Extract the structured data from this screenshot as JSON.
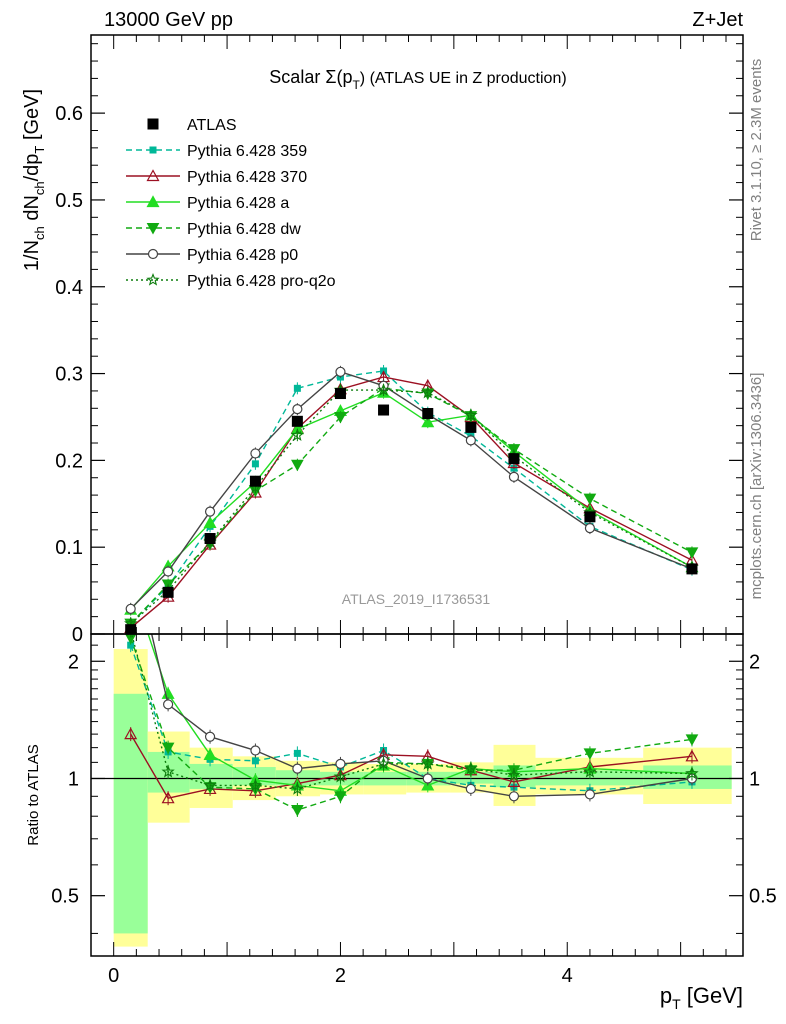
{
  "header": {
    "left": "13000 GeV pp",
    "right": "Z+Jet"
  },
  "side": {
    "rivet": "Rivet 3.1.10, ≥ 2.3M events",
    "site": "mcplots.cern.ch [arXiv:1306.3436]"
  },
  "analysis_id": "ATLAS_2019_I1736531",
  "chart_data": [
    {
      "type": "line",
      "title": "Scalar Σ(pT) (ATLAS UE in Z production)",
      "title_main": "Scalar Σ(p",
      "title_sub": "T",
      "title_tail": ") (ATLAS UE in Z production)",
      "ylabel": "1/Nch dNch/dpT [GeV]",
      "xlim": [
        -0.2,
        5.55
      ],
      "ylim": [
        0,
        0.69
      ],
      "yticks": [
        0,
        0.1,
        0.2,
        0.3,
        0.4,
        0.5,
        0.6
      ],
      "ytick_labels": [
        "0",
        "0.1",
        "0.2",
        "0.3",
        "0.4",
        "0.5",
        "0.6"
      ],
      "legend_position": "top-left",
      "x": [
        0.15,
        0.48,
        0.85,
        1.25,
        1.62,
        2.0,
        2.38,
        2.77,
        3.15,
        3.53,
        4.2,
        5.1
      ],
      "data_series": {
        "name": "ATLAS",
        "values": [
          0.005,
          0.048,
          0.11,
          0.176,
          0.245,
          0.277,
          0.258,
          0.254,
          0.238,
          0.202,
          0.135,
          0.075
        ],
        "color": "#000000"
      },
      "series": [
        {
          "name": "Pythia 6.428 359",
          "color": "#00b898",
          "dash": "6,4",
          "marker": "square",
          "values": [
            0.012,
            0.055,
            0.124,
            0.196,
            0.283,
            0.296,
            0.303,
            0.255,
            0.228,
            0.191,
            0.124,
            0.074
          ]
        },
        {
          "name": "Pythia 6.428 370",
          "color": "#9c1022",
          "dash": "",
          "marker": "triangle-open",
          "values": [
            0.007,
            0.043,
            0.103,
            0.163,
            0.237,
            0.282,
            0.296,
            0.286,
            0.25,
            0.197,
            0.145,
            0.085
          ]
        },
        {
          "name": "Pythia 6.428 a",
          "color": "#22dd22",
          "dash": "",
          "marker": "triangle",
          "values": [
            0.028,
            0.078,
            0.128,
            0.175,
            0.236,
            0.257,
            0.278,
            0.244,
            0.252,
            0.21,
            0.142,
            0.077
          ]
        },
        {
          "name": "Pythia 6.428 dw",
          "color": "#11aa11",
          "dash": "6,4",
          "marker": "triangle-down",
          "values": [
            0.012,
            0.057,
            0.104,
            0.165,
            0.195,
            0.25,
            0.283,
            0.277,
            0.251,
            0.213,
            0.156,
            0.094
          ]
        },
        {
          "name": "Pythia 6.428 p0",
          "color": "#444444",
          "dash": "",
          "marker": "circle-open",
          "values": [
            0.029,
            0.072,
            0.141,
            0.208,
            0.259,
            0.302,
            0.286,
            0.253,
            0.223,
            0.181,
            0.122,
            0.075
          ]
        },
        {
          "name": "Pythia 6.428 pro-q2o",
          "color": "#0d7d0d",
          "dash": "2,3",
          "marker": "star-open",
          "values": [
            0.012,
            0.05,
            0.106,
            0.169,
            0.229,
            0.281,
            0.281,
            0.278,
            0.252,
            0.205,
            0.14,
            0.077
          ]
        }
      ]
    },
    {
      "type": "line",
      "ylabel": "Ratio to ATLAS",
      "xlabel": "pT [GeV]",
      "xlim": [
        -0.2,
        5.55
      ],
      "ylim": [
        0.35,
        2.35
      ],
      "log_scale_y": true,
      "xticks": [
        0,
        2,
        4
      ],
      "xtick_labels": [
        "0",
        "2",
        "4"
      ],
      "yticks": [
        0.5,
        1,
        2
      ],
      "ytick_labels": [
        "0.5",
        "1",
        "2"
      ],
      "bands": {
        "bin_edges": [
          0.0,
          0.3,
          0.67,
          1.05,
          1.43,
          1.82,
          2.2,
          2.58,
          2.97,
          3.35,
          3.72,
          4.67,
          5.45
        ],
        "inner": [
          [
            0.4,
            1.65
          ],
          [
            0.92,
            1.17
          ],
          [
            0.94,
            1.09
          ],
          [
            0.96,
            1.07
          ],
          [
            0.96,
            1.05
          ],
          [
            0.96,
            1.04
          ],
          [
            0.96,
            1.04
          ],
          [
            0.96,
            1.04
          ],
          [
            0.97,
            1.04
          ],
          [
            0.95,
            1.08
          ],
          [
            0.96,
            1.05
          ],
          [
            0.94,
            1.08
          ]
        ],
        "outer": [
          [
            0.37,
            2.15
          ],
          [
            0.77,
            1.32
          ],
          [
            0.84,
            1.2
          ],
          [
            0.88,
            1.14
          ],
          [
            0.9,
            1.11
          ],
          [
            0.91,
            1.1
          ],
          [
            0.91,
            1.09
          ],
          [
            0.92,
            1.09
          ],
          [
            0.92,
            1.1
          ],
          [
            0.85,
            1.22
          ],
          [
            0.91,
            1.13
          ],
          [
            0.86,
            1.2
          ]
        ],
        "inner_color": "#99ff99",
        "outer_color": "#ffff99"
      },
      "ratio_series": [
        {
          "name": "Pythia 6.428 359",
          "values": [
            2.2,
            1.17,
            1.12,
            1.11,
            1.16,
            1.07,
            1.18,
            1.0,
            0.96,
            0.95,
            0.93,
            0.98
          ]
        },
        {
          "name": "Pythia 6.428 370",
          "values": [
            1.3,
            0.89,
            0.94,
            0.93,
            0.97,
            1.02,
            1.15,
            1.14,
            1.05,
            0.98,
            1.07,
            1.14
          ]
        },
        {
          "name": "Pythia 6.428 a",
          "values": [
            3.2,
            1.65,
            1.15,
            0.99,
            0.96,
            0.93,
            1.08,
            0.96,
            1.06,
            1.04,
            1.06,
            1.03
          ]
        },
        {
          "name": "Pythia 6.428 dw",
          "values": [
            2.3,
            1.2,
            0.95,
            0.94,
            0.83,
            0.9,
            1.1,
            1.09,
            1.05,
            1.05,
            1.16,
            1.26
          ]
        },
        {
          "name": "Pythia 6.428 p0",
          "values": [
            4.0,
            1.55,
            1.28,
            1.18,
            1.06,
            1.09,
            1.11,
            1.0,
            0.94,
            0.9,
            0.91,
            1.0
          ]
        },
        {
          "name": "Pythia 6.428 pro-q2o",
          "values": [
            2.4,
            1.04,
            0.96,
            0.96,
            0.94,
            1.01,
            1.09,
            1.09,
            1.06,
            1.02,
            1.04,
            1.03
          ]
        }
      ]
    }
  ]
}
